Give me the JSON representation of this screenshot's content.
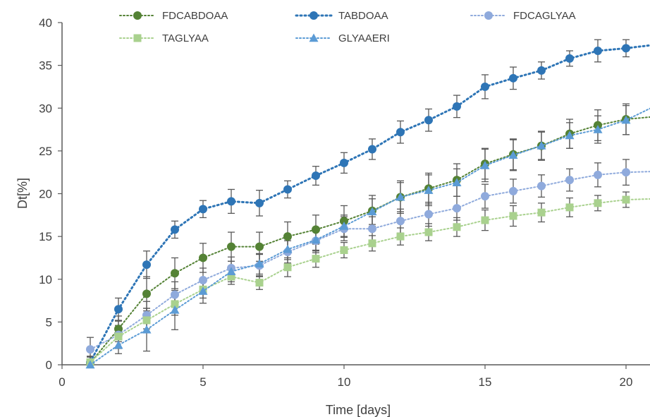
{
  "chart_data": {
    "type": "line",
    "title": "",
    "xlabel": "Time [days]",
    "ylabel": "Dt[%]",
    "xlim": [
      0,
      21
    ],
    "ylim": [
      0,
      40
    ],
    "x_ticks": [
      0,
      5,
      10,
      15,
      20
    ],
    "y_ticks": [
      0,
      5,
      10,
      15,
      20,
      25,
      30,
      35,
      40
    ],
    "grid": false,
    "legend_position": "top",
    "series": [
      {
        "name": "FDCABDOAA",
        "color": "#548235",
        "marker": "circle",
        "x": [
          1,
          2,
          3,
          4,
          5,
          6,
          7,
          8,
          9,
          10,
          11,
          12,
          13,
          14,
          15,
          16,
          17,
          18,
          19,
          20,
          21
        ],
        "y": [
          0.2,
          4.2,
          8.3,
          10.7,
          12.5,
          13.8,
          13.8,
          15.0,
          15.8,
          16.8,
          18.0,
          19.6,
          20.6,
          21.6,
          23.5,
          24.6,
          25.6,
          27.0,
          28.0,
          28.7,
          29.0
        ],
        "err": [
          0.8,
          1.5,
          2.0,
          1.8,
          1.7,
          1.7,
          1.7,
          1.7,
          1.7,
          1.8,
          1.8,
          1.9,
          1.8,
          1.9,
          1.8,
          1.8,
          1.7,
          1.7,
          1.8,
          1.8,
          1.8
        ]
      },
      {
        "name": "TABDOAA",
        "color": "#2E75B6",
        "marker": "circle",
        "x": [
          1,
          2,
          3,
          4,
          5,
          6,
          7,
          8,
          9,
          10,
          11,
          12,
          13,
          14,
          15,
          16,
          17,
          18,
          19,
          20,
          21
        ],
        "y": [
          0.3,
          6.5,
          11.7,
          15.8,
          18.2,
          19.1,
          18.9,
          20.5,
          22.1,
          23.6,
          25.2,
          27.2,
          28.6,
          30.2,
          32.5,
          33.5,
          34.4,
          35.8,
          36.7,
          37.0,
          37.4
        ],
        "err": [
          0.6,
          1.3,
          1.6,
          1.0,
          1.0,
          1.4,
          1.5,
          1.0,
          1.1,
          1.2,
          1.2,
          1.3,
          1.3,
          1.3,
          1.4,
          1.3,
          1.0,
          0.9,
          1.3,
          1.0,
          1.0
        ]
      },
      {
        "name": "FDCAGLYAA",
        "color": "#8FAADC",
        "marker": "circle",
        "x": [
          1,
          2,
          3,
          4,
          5,
          6,
          7,
          8,
          9,
          10,
          11,
          12,
          13,
          14,
          15,
          16,
          17,
          18,
          19,
          20,
          21
        ],
        "y": [
          1.8,
          3.5,
          5.8,
          8.2,
          9.9,
          11.3,
          11.6,
          13.2,
          14.5,
          15.9,
          15.9,
          16.8,
          17.6,
          18.3,
          19.7,
          20.3,
          20.9,
          21.6,
          22.2,
          22.5,
          22.6
        ],
        "err": [
          1.4,
          1.6,
          1.6,
          1.5,
          1.4,
          1.3,
          1.3,
          1.3,
          1.4,
          1.4,
          1.4,
          1.4,
          1.4,
          1.4,
          1.4,
          1.4,
          1.3,
          1.3,
          1.4,
          1.5,
          1.5
        ]
      },
      {
        "name": "TAGLYAA",
        "color": "#A9D18E",
        "marker": "square",
        "x": [
          1,
          2,
          3,
          4,
          5,
          6,
          7,
          8,
          9,
          10,
          11,
          12,
          13,
          14,
          15,
          16,
          17,
          18,
          19,
          20,
          21
        ],
        "y": [
          0.3,
          3.3,
          5.2,
          7.1,
          8.8,
          10.3,
          9.6,
          11.4,
          12.4,
          13.4,
          14.2,
          15.0,
          15.5,
          16.1,
          16.9,
          17.4,
          17.8,
          18.4,
          18.9,
          19.3,
          19.4
        ],
        "err": [
          0.7,
          1.3,
          1.4,
          1.3,
          1.0,
          0.9,
          0.8,
          1.1,
          1.0,
          0.9,
          0.9,
          1.0,
          1.0,
          1.1,
          1.2,
          1.2,
          1.1,
          1.1,
          0.9,
          0.9,
          0.9
        ]
      },
      {
        "name": "GLYAAERI",
        "color": "#5B9BD5",
        "marker": "triangle",
        "x": [
          1,
          2,
          3,
          4,
          5,
          6,
          7,
          8,
          9,
          10,
          11,
          12,
          13,
          14,
          15,
          16,
          17,
          18,
          19,
          20,
          21
        ],
        "y": [
          0.0,
          2.3,
          4.1,
          6.4,
          8.6,
          10.9,
          11.8,
          13.5,
          14.6,
          16.2,
          17.9,
          19.6,
          20.4,
          21.3,
          23.3,
          24.5,
          25.6,
          26.8,
          27.5,
          28.6,
          30.2
        ],
        "err": [
          0.5,
          1.0,
          2.5,
          2.3,
          1.4,
          1.2,
          1.2,
          1.2,
          1.3,
          1.3,
          1.5,
          1.7,
          1.8,
          1.6,
          1.9,
          1.8,
          1.6,
          1.5,
          1.6,
          1.7,
          1.7
        ]
      }
    ]
  }
}
